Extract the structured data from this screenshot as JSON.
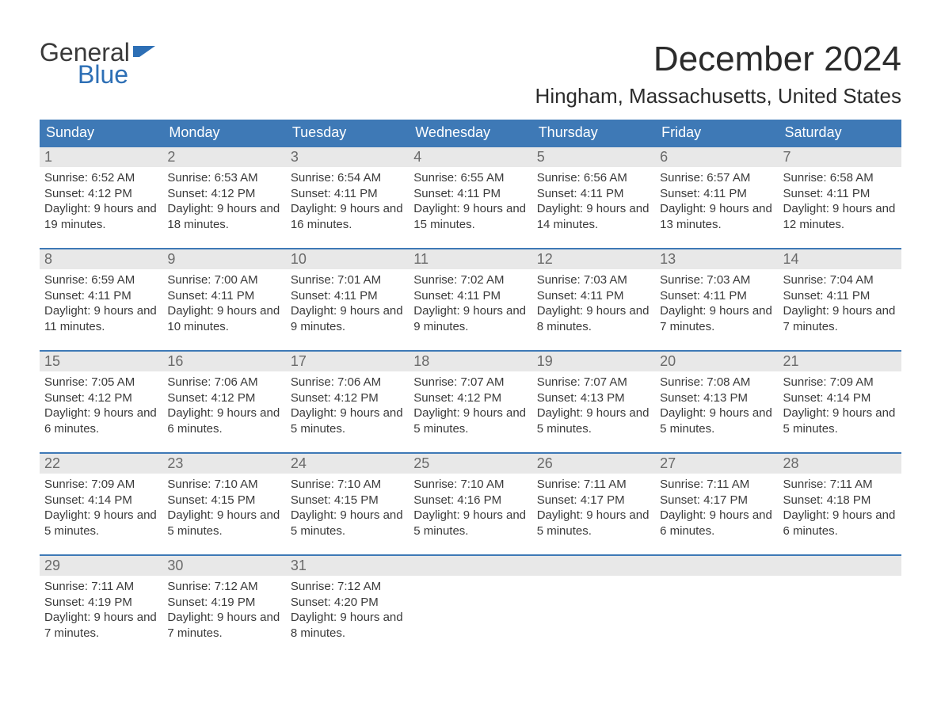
{
  "logo": {
    "text1": "General",
    "text2": "Blue",
    "flag_color": "#2d6fb5"
  },
  "title": "December 2024",
  "location": "Hingham, Massachusetts, United States",
  "colors": {
    "header_bg": "#3e79b6",
    "row_border": "#3e79b6",
    "daynum_bg": "#e8e8e8",
    "text": "#3a3a3a",
    "logo_blue": "#2d6fb5"
  },
  "weekdays": [
    "Sunday",
    "Monday",
    "Tuesday",
    "Wednesday",
    "Thursday",
    "Friday",
    "Saturday"
  ],
  "weeks": [
    [
      {
        "n": "1",
        "sunrise": "6:52 AM",
        "sunset": "4:12 PM",
        "daylight": "9 hours and 19 minutes."
      },
      {
        "n": "2",
        "sunrise": "6:53 AM",
        "sunset": "4:12 PM",
        "daylight": "9 hours and 18 minutes."
      },
      {
        "n": "3",
        "sunrise": "6:54 AM",
        "sunset": "4:11 PM",
        "daylight": "9 hours and 16 minutes."
      },
      {
        "n": "4",
        "sunrise": "6:55 AM",
        "sunset": "4:11 PM",
        "daylight": "9 hours and 15 minutes."
      },
      {
        "n": "5",
        "sunrise": "6:56 AM",
        "sunset": "4:11 PM",
        "daylight": "9 hours and 14 minutes."
      },
      {
        "n": "6",
        "sunrise": "6:57 AM",
        "sunset": "4:11 PM",
        "daylight": "9 hours and 13 minutes."
      },
      {
        "n": "7",
        "sunrise": "6:58 AM",
        "sunset": "4:11 PM",
        "daylight": "9 hours and 12 minutes."
      }
    ],
    [
      {
        "n": "8",
        "sunrise": "6:59 AM",
        "sunset": "4:11 PM",
        "daylight": "9 hours and 11 minutes."
      },
      {
        "n": "9",
        "sunrise": "7:00 AM",
        "sunset": "4:11 PM",
        "daylight": "9 hours and 10 minutes."
      },
      {
        "n": "10",
        "sunrise": "7:01 AM",
        "sunset": "4:11 PM",
        "daylight": "9 hours and 9 minutes."
      },
      {
        "n": "11",
        "sunrise": "7:02 AM",
        "sunset": "4:11 PM",
        "daylight": "9 hours and 9 minutes."
      },
      {
        "n": "12",
        "sunrise": "7:03 AM",
        "sunset": "4:11 PM",
        "daylight": "9 hours and 8 minutes."
      },
      {
        "n": "13",
        "sunrise": "7:03 AM",
        "sunset": "4:11 PM",
        "daylight": "9 hours and 7 minutes."
      },
      {
        "n": "14",
        "sunrise": "7:04 AM",
        "sunset": "4:11 PM",
        "daylight": "9 hours and 7 minutes."
      }
    ],
    [
      {
        "n": "15",
        "sunrise": "7:05 AM",
        "sunset": "4:12 PM",
        "daylight": "9 hours and 6 minutes."
      },
      {
        "n": "16",
        "sunrise": "7:06 AM",
        "sunset": "4:12 PM",
        "daylight": "9 hours and 6 minutes."
      },
      {
        "n": "17",
        "sunrise": "7:06 AM",
        "sunset": "4:12 PM",
        "daylight": "9 hours and 5 minutes."
      },
      {
        "n": "18",
        "sunrise": "7:07 AM",
        "sunset": "4:12 PM",
        "daylight": "9 hours and 5 minutes."
      },
      {
        "n": "19",
        "sunrise": "7:07 AM",
        "sunset": "4:13 PM",
        "daylight": "9 hours and 5 minutes."
      },
      {
        "n": "20",
        "sunrise": "7:08 AM",
        "sunset": "4:13 PM",
        "daylight": "9 hours and 5 minutes."
      },
      {
        "n": "21",
        "sunrise": "7:09 AM",
        "sunset": "4:14 PM",
        "daylight": "9 hours and 5 minutes."
      }
    ],
    [
      {
        "n": "22",
        "sunrise": "7:09 AM",
        "sunset": "4:14 PM",
        "daylight": "9 hours and 5 minutes."
      },
      {
        "n": "23",
        "sunrise": "7:10 AM",
        "sunset": "4:15 PM",
        "daylight": "9 hours and 5 minutes."
      },
      {
        "n": "24",
        "sunrise": "7:10 AM",
        "sunset": "4:15 PM",
        "daylight": "9 hours and 5 minutes."
      },
      {
        "n": "25",
        "sunrise": "7:10 AM",
        "sunset": "4:16 PM",
        "daylight": "9 hours and 5 minutes."
      },
      {
        "n": "26",
        "sunrise": "7:11 AM",
        "sunset": "4:17 PM",
        "daylight": "9 hours and 5 minutes."
      },
      {
        "n": "27",
        "sunrise": "7:11 AM",
        "sunset": "4:17 PM",
        "daylight": "9 hours and 6 minutes."
      },
      {
        "n": "28",
        "sunrise": "7:11 AM",
        "sunset": "4:18 PM",
        "daylight": "9 hours and 6 minutes."
      }
    ],
    [
      {
        "n": "29",
        "sunrise": "7:11 AM",
        "sunset": "4:19 PM",
        "daylight": "9 hours and 7 minutes."
      },
      {
        "n": "30",
        "sunrise": "7:12 AM",
        "sunset": "4:19 PM",
        "daylight": "9 hours and 7 minutes."
      },
      {
        "n": "31",
        "sunrise": "7:12 AM",
        "sunset": "4:20 PM",
        "daylight": "9 hours and 8 minutes."
      },
      {
        "empty": true
      },
      {
        "empty": true
      },
      {
        "empty": true
      },
      {
        "empty": true
      }
    ]
  ],
  "labels": {
    "sunrise": "Sunrise: ",
    "sunset": "Sunset: ",
    "daylight": "Daylight: "
  }
}
